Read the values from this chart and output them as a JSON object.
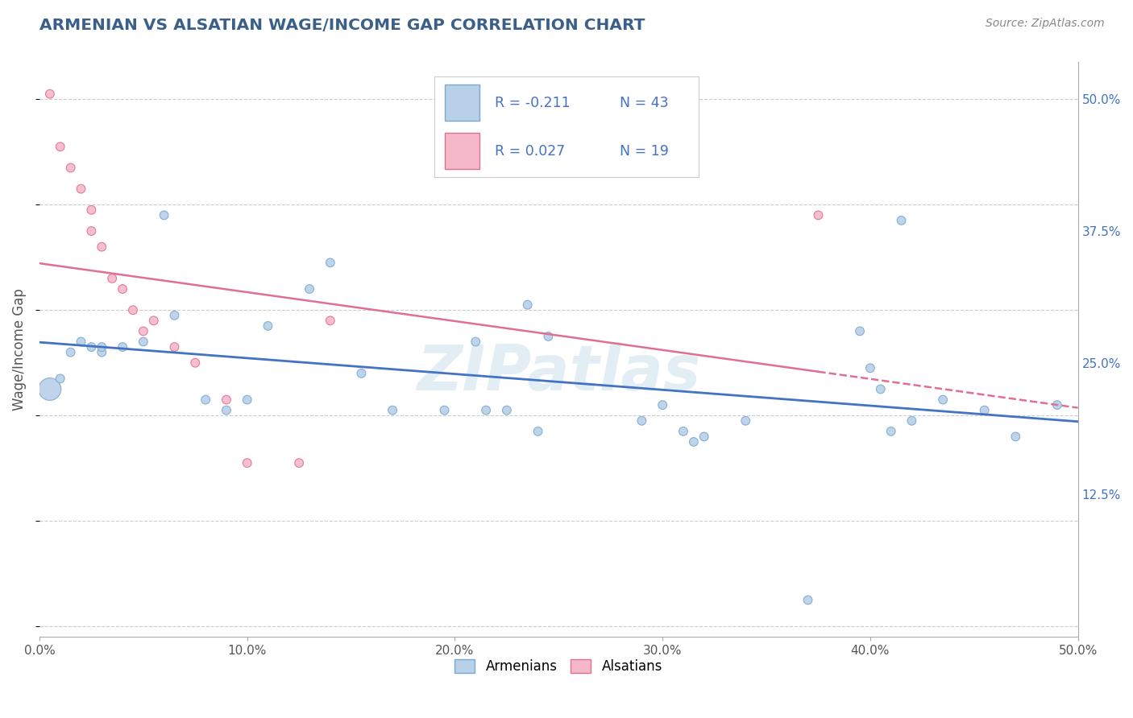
{
  "title": "ARMENIAN VS ALSATIAN WAGE/INCOME GAP CORRELATION CHART",
  "source": "Source: ZipAtlas.com",
  "ylabel": "Wage/Income Gap",
  "xlim": [
    0.0,
    0.5
  ],
  "ylim": [
    -0.01,
    0.535
  ],
  "xticks": [
    0.0,
    0.1,
    0.2,
    0.3,
    0.4,
    0.5
  ],
  "xticklabels": [
    "0.0%",
    "10.0%",
    "20.0%",
    "30.0%",
    "40.0%",
    "50.0%"
  ],
  "yticks_right": [
    0.125,
    0.25,
    0.375,
    0.5
  ],
  "yticklabels_right": [
    "12.5%",
    "25.0%",
    "37.5%",
    "50.0%"
  ],
  "grid_color": "#cccccc",
  "background_color": "#ffffff",
  "title_color": "#3a5f8a",
  "source_color": "#888888",
  "armenians_color": "#b8d0e8",
  "armenians_edge": "#7aaad0",
  "alsatians_color": "#f4b8c8",
  "alsatians_edge": "#e07090",
  "armenians_r": -0.211,
  "armenians_n": 43,
  "alsatians_r": 0.027,
  "alsatians_n": 19,
  "trend_blue": "#4472c4",
  "trend_pink": "#e07090",
  "armenians_x": [
    0.005,
    0.01,
    0.015,
    0.02,
    0.025,
    0.03,
    0.03,
    0.04,
    0.05,
    0.06,
    0.065,
    0.08,
    0.09,
    0.1,
    0.11,
    0.13,
    0.14,
    0.155,
    0.17,
    0.195,
    0.21,
    0.215,
    0.225,
    0.235,
    0.24,
    0.245,
    0.29,
    0.3,
    0.31,
    0.315,
    0.32,
    0.34,
    0.37,
    0.395,
    0.4,
    0.405,
    0.41,
    0.415,
    0.42,
    0.435,
    0.455,
    0.47,
    0.49
  ],
  "armenians_y": [
    0.225,
    0.235,
    0.26,
    0.27,
    0.265,
    0.26,
    0.265,
    0.265,
    0.27,
    0.39,
    0.295,
    0.215,
    0.205,
    0.215,
    0.285,
    0.32,
    0.345,
    0.24,
    0.205,
    0.205,
    0.27,
    0.205,
    0.205,
    0.305,
    0.185,
    0.275,
    0.195,
    0.21,
    0.185,
    0.175,
    0.18,
    0.195,
    0.025,
    0.28,
    0.245,
    0.225,
    0.185,
    0.385,
    0.195,
    0.215,
    0.205,
    0.18,
    0.21
  ],
  "armenians_sizes": [
    400,
    60,
    60,
    60,
    60,
    60,
    60,
    60,
    60,
    60,
    60,
    60,
    60,
    60,
    60,
    60,
    60,
    60,
    60,
    60,
    60,
    60,
    60,
    60,
    60,
    60,
    60,
    60,
    60,
    60,
    60,
    60,
    60,
    60,
    60,
    60,
    60,
    60,
    60,
    60,
    60,
    60,
    60
  ],
  "alsatians_x": [
    0.005,
    0.01,
    0.015,
    0.02,
    0.025,
    0.025,
    0.03,
    0.035,
    0.04,
    0.045,
    0.05,
    0.055,
    0.065,
    0.075,
    0.09,
    0.1,
    0.125,
    0.14,
    0.375
  ],
  "alsatians_y": [
    0.505,
    0.455,
    0.435,
    0.415,
    0.395,
    0.375,
    0.36,
    0.33,
    0.32,
    0.3,
    0.28,
    0.29,
    0.265,
    0.25,
    0.215,
    0.155,
    0.155,
    0.29,
    0.39
  ],
  "alsatians_sizes": [
    60,
    60,
    60,
    60,
    60,
    60,
    60,
    60,
    60,
    60,
    60,
    60,
    60,
    60,
    60,
    60,
    60,
    60,
    60
  ]
}
